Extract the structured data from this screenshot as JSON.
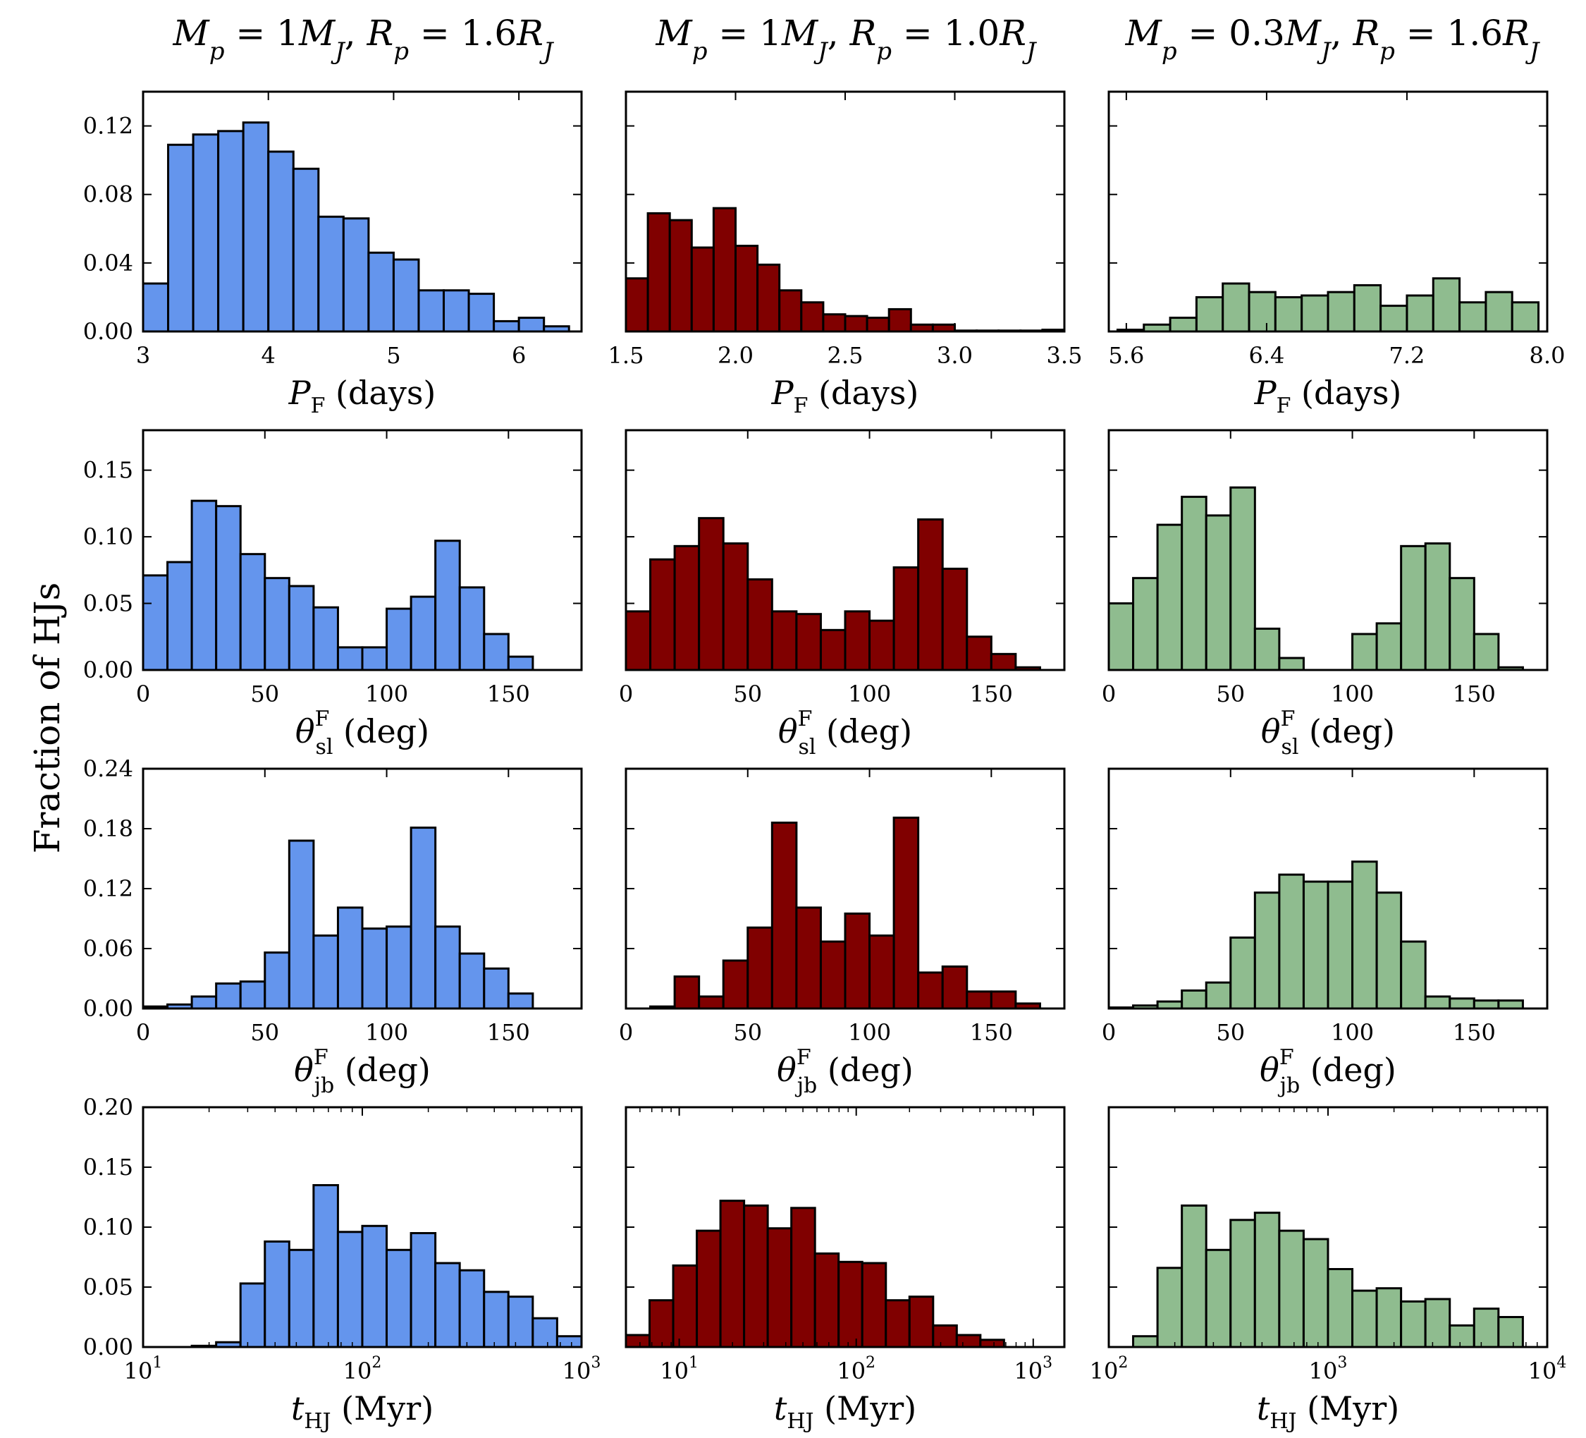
{
  "figure": {
    "ylabel": "Fraction of HJs",
    "column_titles": [
      "Mp = 1MJ, Rp = 1.6RJ",
      "Mp = 1MJ, Rp = 1.0RJ",
      "Mp = 0.3MJ, Rp = 1.6RJ"
    ],
    "column_title_parts": [
      {
        "a": "M",
        "a_sub": "p",
        "b": " = 1",
        "c": "M",
        "c_sub": "J",
        "d": ", ",
        "e": "R",
        "e_sub": "p",
        "f": " = 1.6",
        "g": "R",
        "g_sub": "J"
      },
      {
        "a": "M",
        "a_sub": "p",
        "b": " = 1",
        "c": "M",
        "c_sub": "J",
        "d": ", ",
        "e": "R",
        "e_sub": "p",
        "f": " = 1.0",
        "g": "R",
        "g_sub": "J"
      },
      {
        "a": "M",
        "a_sub": "p",
        "b": " = 0.3",
        "c": "M",
        "c_sub": "J",
        "d": ", ",
        "e": "R",
        "e_sub": "p",
        "f": " = 1.6",
        "g": "R",
        "g_sub": "J"
      }
    ],
    "row_xlabels": [
      {
        "base": "P",
        "sub": "F",
        "sup": "",
        "unit": " (days)"
      },
      {
        "base": "θ",
        "sub": "sl",
        "sup": "F",
        "unit": " (deg)"
      },
      {
        "base": "θ",
        "sub": "jb",
        "sup": "F",
        "unit": " (deg)"
      },
      {
        "base": "t",
        "sub": "HJ",
        "sup": "",
        "unit": " (Myr)"
      }
    ],
    "colors": [
      "#6495ED",
      "#800000",
      "#8FBC8F"
    ]
  },
  "chart_data": [
    {
      "type": "bar",
      "row": 0,
      "col": 0,
      "xlabel": "P_F (days)",
      "xlim": [
        3,
        6.5
      ],
      "ylim": [
        0,
        0.14
      ],
      "xticks": [
        3,
        4,
        5,
        6
      ],
      "xticklabels": [
        "3",
        "4",
        "5",
        "6"
      ],
      "yticks": [
        0,
        0.04,
        0.08,
        0.12
      ],
      "yticklabels": [
        "0.00",
        "0.04",
        "0.08",
        "0.12"
      ],
      "show_yticklabels": true,
      "log": false,
      "bin_start": 3.0,
      "bin_width": 0.2,
      "values": [
        0.028,
        0.109,
        0.115,
        0.117,
        0.122,
        0.105,
        0.095,
        0.067,
        0.066,
        0.046,
        0.042,
        0.024,
        0.024,
        0.022,
        0.006,
        0.008,
        0.003
      ]
    },
    {
      "type": "bar",
      "row": 0,
      "col": 1,
      "xlabel": "P_F (days)",
      "xlim": [
        1.5,
        3.5
      ],
      "ylim": [
        0,
        0.14
      ],
      "xticks": [
        1.5,
        2.0,
        2.5,
        3.0,
        3.5
      ],
      "xticklabels": [
        "1.5",
        "2.0",
        "2.5",
        "3.0",
        "3.5"
      ],
      "yticks": [
        0,
        0.04,
        0.08,
        0.12
      ],
      "yticklabels": [
        "",
        "",
        "",
        ""
      ],
      "show_yticklabels": false,
      "log": false,
      "bin_start": 1.5,
      "bin_width": 0.1,
      "values": [
        0.031,
        0.069,
        0.065,
        0.049,
        0.072,
        0.05,
        0.039,
        0.024,
        0.017,
        0.01,
        0.009,
        0.008,
        0.013,
        0.004,
        0.004,
        0.0005,
        0.0005,
        0.0005,
        0.0005,
        0.001
      ]
    },
    {
      "type": "bar",
      "row": 0,
      "col": 2,
      "xlabel": "P_F (days)",
      "xlim": [
        5.5,
        8.0
      ],
      "ylim": [
        0,
        0.14
      ],
      "xticks": [
        5.6,
        6.4,
        7.2,
        8.0
      ],
      "xticklabels": [
        "5.6",
        "6.4",
        "7.2",
        "8.0"
      ],
      "yticks": [
        0,
        0.04,
        0.08,
        0.12
      ],
      "yticklabels": [
        "",
        "",
        "",
        ""
      ],
      "show_yticklabels": false,
      "log": false,
      "bin_start": 5.55,
      "bin_width": 0.15,
      "values": [
        0.001,
        0.004,
        0.008,
        0.02,
        0.028,
        0.023,
        0.02,
        0.021,
        0.023,
        0.027,
        0.015,
        0.021,
        0.031,
        0.017,
        0.023,
        0.017
      ]
    },
    {
      "type": "bar",
      "row": 1,
      "col": 0,
      "xlabel": "θ_sl^F (deg)",
      "xlim": [
        0,
        180
      ],
      "ylim": [
        0,
        0.18
      ],
      "xticks": [
        0,
        50,
        100,
        150
      ],
      "xticklabels": [
        "0",
        "50",
        "100",
        "150"
      ],
      "yticks": [
        0,
        0.05,
        0.1,
        0.15
      ],
      "yticklabels": [
        "0.00",
        "0.05",
        "0.10",
        "0.15"
      ],
      "show_yticklabels": true,
      "log": false,
      "bin_start": 0,
      "bin_width": 10,
      "values": [
        0.071,
        0.081,
        0.127,
        0.123,
        0.087,
        0.069,
        0.063,
        0.047,
        0.017,
        0.017,
        0.046,
        0.055,
        0.097,
        0.062,
        0.027,
        0.01
      ]
    },
    {
      "type": "bar",
      "row": 1,
      "col": 1,
      "xlabel": "θ_sl^F (deg)",
      "xlim": [
        0,
        180
      ],
      "ylim": [
        0,
        0.18
      ],
      "xticks": [
        0,
        50,
        100,
        150
      ],
      "xticklabels": [
        "0",
        "50",
        "100",
        "150"
      ],
      "yticks": [
        0,
        0.05,
        0.1,
        0.15
      ],
      "yticklabels": [
        "",
        "",
        "",
        ""
      ],
      "show_yticklabels": false,
      "log": false,
      "bin_start": 0,
      "bin_width": 10,
      "values": [
        0.044,
        0.083,
        0.093,
        0.114,
        0.095,
        0.068,
        0.044,
        0.042,
        0.03,
        0.044,
        0.037,
        0.077,
        0.113,
        0.076,
        0.025,
        0.012,
        0.002
      ]
    },
    {
      "type": "bar",
      "row": 1,
      "col": 2,
      "xlabel": "θ_sl^F (deg)",
      "xlim": [
        0,
        180
      ],
      "ylim": [
        0,
        0.18
      ],
      "xticks": [
        0,
        50,
        100,
        150
      ],
      "xticklabels": [
        "0",
        "50",
        "100",
        "150"
      ],
      "yticks": [
        0,
        0.05,
        0.1,
        0.15
      ],
      "yticklabels": [
        "",
        "",
        "",
        ""
      ],
      "show_yticklabels": false,
      "log": false,
      "bin_start": 0,
      "bin_width": 10,
      "values": [
        0.05,
        0.069,
        0.109,
        0.13,
        0.116,
        0.137,
        0.031,
        0.009,
        0,
        0,
        0.027,
        0.035,
        0.093,
        0.095,
        0.069,
        0.027,
        0.002
      ]
    },
    {
      "type": "bar",
      "row": 2,
      "col": 0,
      "xlabel": "θ_jb^F (deg)",
      "xlim": [
        0,
        180
      ],
      "ylim": [
        0,
        0.24
      ],
      "xticks": [
        0,
        50,
        100,
        150
      ],
      "xticklabels": [
        "0",
        "50",
        "100",
        "150"
      ],
      "yticks": [
        0,
        0.06,
        0.12,
        0.18,
        0.24
      ],
      "yticklabels": [
        "0.00",
        "0.06",
        "0.12",
        "0.18",
        "0.24"
      ],
      "show_yticklabels": true,
      "log": false,
      "bin_start": 0,
      "bin_width": 10,
      "values": [
        0.002,
        0.004,
        0.012,
        0.025,
        0.027,
        0.056,
        0.168,
        0.073,
        0.101,
        0.08,
        0.082,
        0.181,
        0.082,
        0.055,
        0.04,
        0.015
      ]
    },
    {
      "type": "bar",
      "row": 2,
      "col": 1,
      "xlabel": "θ_jb^F (deg)",
      "xlim": [
        0,
        180
      ],
      "ylim": [
        0,
        0.24
      ],
      "xticks": [
        0,
        50,
        100,
        150
      ],
      "xticklabels": [
        "0",
        "50",
        "100",
        "150"
      ],
      "yticks": [
        0,
        0.06,
        0.12,
        0.18,
        0.24
      ],
      "yticklabels": [
        "",
        "",
        "",
        "",
        ""
      ],
      "show_yticklabels": false,
      "log": false,
      "bin_start": 0,
      "bin_width": 10,
      "values": [
        0,
        0.002,
        0.032,
        0.012,
        0.048,
        0.081,
        0.186,
        0.101,
        0.067,
        0.095,
        0.073,
        0.191,
        0.036,
        0.042,
        0.017,
        0.017,
        0.005
      ]
    },
    {
      "type": "bar",
      "row": 2,
      "col": 2,
      "xlabel": "θ_jb^F (deg)",
      "xlim": [
        0,
        180
      ],
      "ylim": [
        0,
        0.24
      ],
      "xticks": [
        0,
        50,
        100,
        150
      ],
      "xticklabels": [
        "0",
        "50",
        "100",
        "150"
      ],
      "yticks": [
        0,
        0.06,
        0.12,
        0.18,
        0.24
      ],
      "yticklabels": [
        "",
        "",
        "",
        "",
        ""
      ],
      "show_yticklabels": false,
      "log": false,
      "bin_start": 0,
      "bin_width": 10,
      "values": [
        0.001,
        0.003,
        0.007,
        0.018,
        0.026,
        0.071,
        0.116,
        0.134,
        0.127,
        0.127,
        0.147,
        0.116,
        0.067,
        0.012,
        0.01,
        0.008,
        0.008
      ]
    },
    {
      "type": "bar",
      "row": 3,
      "col": 0,
      "xlabel": "t_HJ (Myr)",
      "xlim": [
        10,
        1000
      ],
      "ylim": [
        0,
        0.2
      ],
      "xticks": [
        10,
        100,
        1000
      ],
      "xticklabels": [
        "10",
        "10",
        "10"
      ],
      "xtick_exponents": [
        "1",
        "2",
        "3"
      ],
      "yticks": [
        0,
        0.05,
        0.1,
        0.15,
        0.2
      ],
      "yticklabels": [
        "0.00",
        "0.05",
        "0.10",
        "0.15",
        "0.20"
      ],
      "show_yticklabels": true,
      "log": true,
      "log_min": 1,
      "log_max": 3,
      "bin_start_log": 1.0,
      "bin_width_log": 0.1111,
      "values": [
        0,
        0,
        0.001,
        0.004,
        0.053,
        0.088,
        0.081,
        0.135,
        0.096,
        0.101,
        0.081,
        0.095,
        0.07,
        0.064,
        0.046,
        0.042,
        0.024,
        0.009
      ]
    },
    {
      "type": "bar",
      "row": 3,
      "col": 1,
      "xlabel": "t_HJ (Myr)",
      "xlim": [
        5,
        1500
      ],
      "ylim": [
        0,
        0.2
      ],
      "xticks": [
        10,
        100,
        1000
      ],
      "xticklabels": [
        "10",
        "10",
        "10"
      ],
      "xtick_exponents": [
        "1",
        "2",
        "3"
      ],
      "yticks": [
        0,
        0.05,
        0.1,
        0.15,
        0.2
      ],
      "yticklabels": [
        "",
        "",
        "",
        "",
        ""
      ],
      "show_yticklabels": false,
      "log": true,
      "log_min": 0.699,
      "log_max": 3.176,
      "bin_start_log": 0.699,
      "bin_width_log": 0.1335,
      "values": [
        0.01,
        0.039,
        0.068,
        0.097,
        0.122,
        0.118,
        0.099,
        0.116,
        0.078,
        0.071,
        0.07,
        0.039,
        0.042,
        0.018,
        0.01,
        0.006
      ]
    },
    {
      "type": "bar",
      "row": 3,
      "col": 2,
      "xlabel": "t_HJ (Myr)",
      "xlim": [
        100,
        10000
      ],
      "ylim": [
        0,
        0.2
      ],
      "xticks": [
        100,
        1000,
        10000
      ],
      "xticklabels": [
        "10",
        "10",
        "10"
      ],
      "xtick_exponents": [
        "2",
        "3",
        "4"
      ],
      "yticks": [
        0,
        0.05,
        0.1,
        0.15,
        0.2
      ],
      "yticklabels": [
        "",
        "",
        "",
        "",
        ""
      ],
      "show_yticklabels": false,
      "log": true,
      "log_min": 2,
      "log_max": 4,
      "bin_start_log": 2.0,
      "bin_width_log": 0.1111,
      "values": [
        0,
        0.009,
        0.066,
        0.118,
        0.081,
        0.106,
        0.112,
        0.097,
        0.09,
        0.065,
        0.047,
        0.049,
        0.038,
        0.04,
        0.018,
        0.032,
        0.025
      ]
    }
  ]
}
